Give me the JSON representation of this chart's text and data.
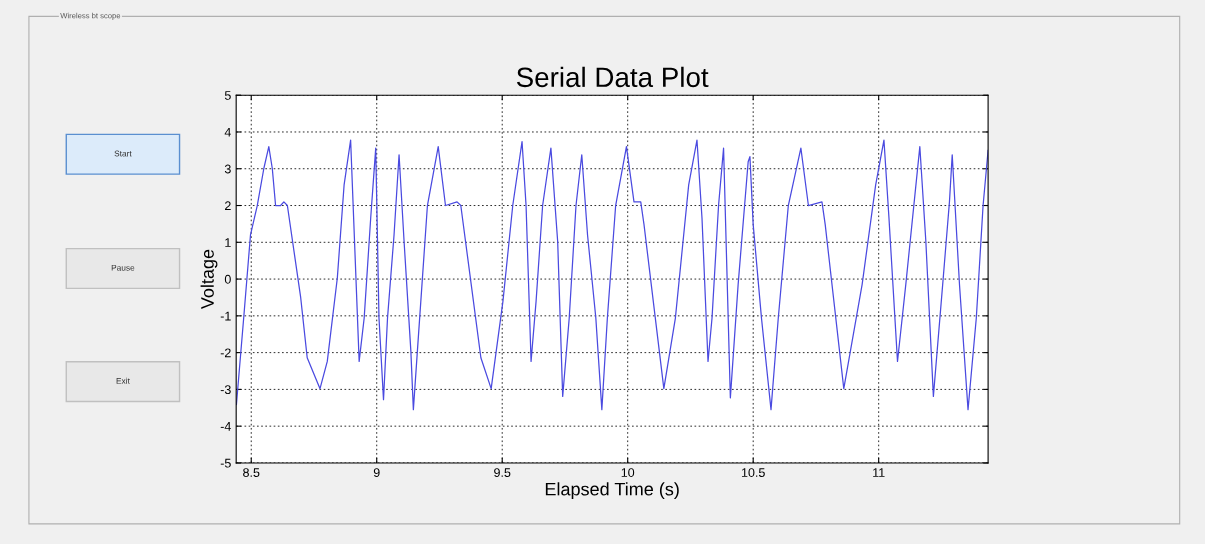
{
  "chart_data": {
    "type": "line",
    "title": "Serial Data Plot",
    "xlabel": "Elapsed Time (s)",
    "ylabel": "Voltage",
    "annotations": [
      "Wireless bt scope",
      "Start",
      "Pause",
      "Exit"
    ],
    "xlim": [
      8.44,
      11.436
    ],
    "ylim": [
      -5,
      5
    ],
    "xticks": [
      8.5,
      9,
      9.5,
      10,
      10.5,
      11
    ],
    "yticks": [
      -5,
      -4,
      -3,
      -2,
      -1,
      0,
      1,
      2,
      3,
      4,
      5
    ],
    "grid": true,
    "marker": "none",
    "line_style": "solid",
    "x": [
      8.441,
      8.471,
      8.497,
      8.524,
      8.55,
      8.57,
      8.584,
      8.597,
      8.617,
      8.63,
      8.644,
      8.697,
      8.723,
      8.774,
      8.803,
      8.843,
      8.87,
      8.896,
      8.93,
      8.95,
      8.976,
      8.996,
      9.009,
      9.027,
      9.043,
      9.069,
      9.089,
      9.109,
      9.136,
      9.146,
      9.162,
      9.202,
      9.245,
      9.274,
      9.32,
      9.335,
      9.415,
      9.456,
      9.503,
      9.542,
      9.579,
      9.595,
      9.615,
      9.635,
      9.661,
      9.694,
      9.721,
      9.741,
      9.767,
      9.794,
      9.817,
      9.84,
      9.873,
      9.897,
      9.919,
      9.952,
      9.995,
      10.025,
      10.052,
      10.065,
      10.144,
      10.19,
      10.243,
      10.276,
      10.296,
      10.32,
      10.336,
      10.362,
      10.382,
      10.409,
      10.44,
      10.48,
      10.487,
      10.5,
      10.533,
      10.571,
      10.6,
      10.64,
      10.69,
      10.72,
      10.774,
      10.787,
      10.861,
      10.934,
      10.988,
      11.021,
      11.041,
      11.075,
      11.108,
      11.164,
      11.188,
      11.218,
      11.255,
      11.282,
      11.293,
      11.322,
      11.356,
      11.389,
      11.416,
      11.436
    ],
    "series": [
      {
        "color": "#4a4ae0",
        "values": [
          -3.41,
          -0.97,
          1.2,
          2.0,
          3.0,
          3.6,
          3.0,
          2.0,
          2.0,
          2.1,
          2.0,
          -0.5,
          -2.14,
          -2.98,
          -2.24,
          0.03,
          2.56,
          3.78,
          -2.24,
          -1.06,
          1.66,
          3.56,
          -1.06,
          -3.28,
          -1.06,
          1.2,
          3.38,
          1.02,
          -1.96,
          -3.55,
          -1.96,
          2.0,
          3.6,
          2.0,
          2.1,
          2.0,
          -2.14,
          -2.98,
          -0.6,
          2.0,
          3.74,
          2.0,
          -2.24,
          -0.6,
          2.0,
          3.56,
          1.02,
          -3.19,
          -1.06,
          2.0,
          3.38,
          1.2,
          -1.06,
          -3.55,
          -1.06,
          2.0,
          3.6,
          2.1,
          2.1,
          1.48,
          -2.98,
          -1.06,
          2.56,
          3.78,
          1.66,
          -2.24,
          -1.06,
          2.0,
          3.56,
          -3.23,
          -0.15,
          3.19,
          3.33,
          1.48,
          -1.06,
          -3.55,
          -1.06,
          2.0,
          3.56,
          2.0,
          2.1,
          1.48,
          -2.98,
          -0.15,
          2.56,
          3.78,
          1.66,
          -2.24,
          -0.15,
          3.6,
          1.02,
          -3.19,
          -0.15,
          2.1,
          3.38,
          -0.15,
          -3.55,
          -1.06,
          2.0,
          3.5
        ]
      }
    ]
  }
}
